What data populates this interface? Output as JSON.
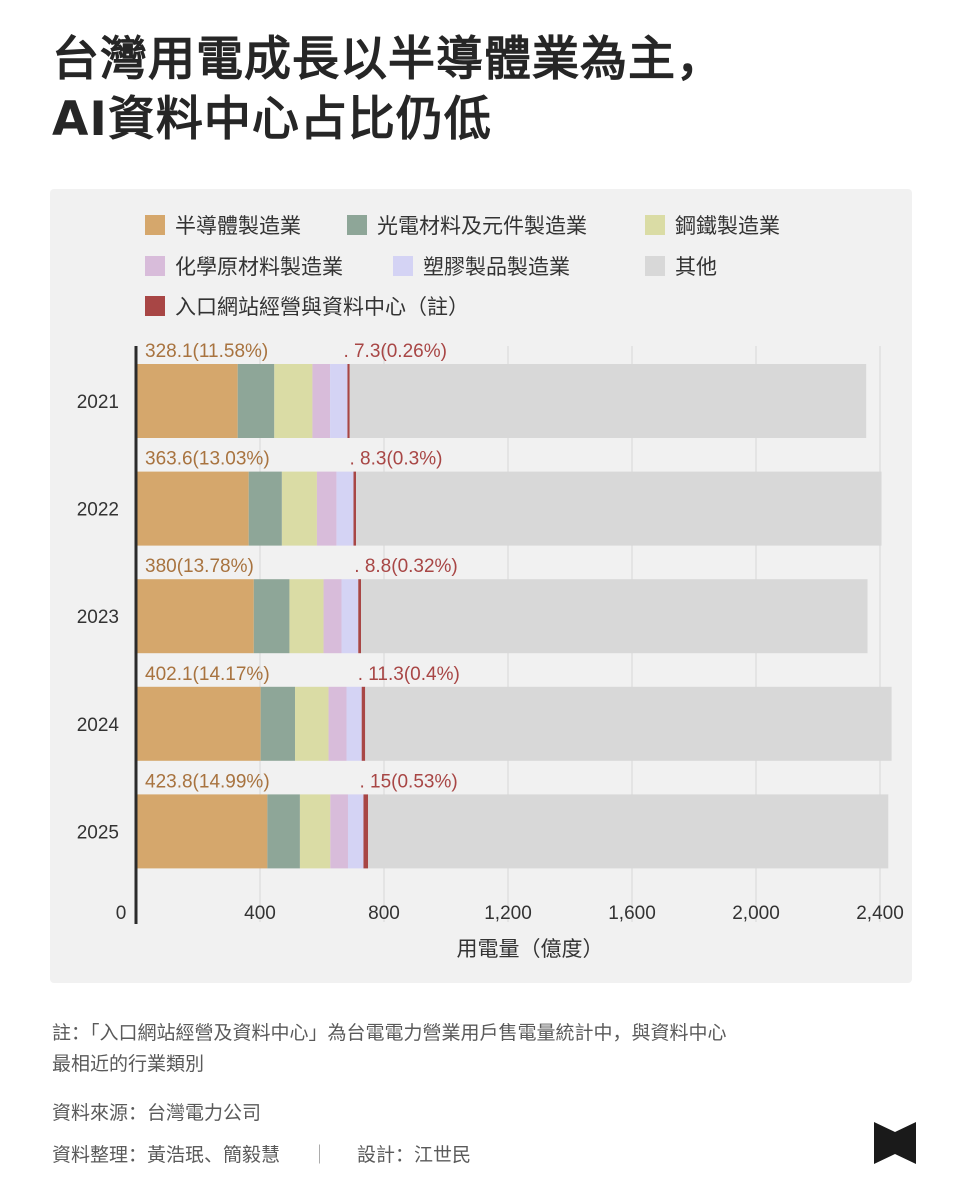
{
  "title_lines": [
    "台灣用電成長以半導體業為主，",
    "AI資料中心占比仍低"
  ],
  "legend": [
    {
      "label": "半導體製造業",
      "color": "#d5a76c"
    },
    {
      "label": "光電材料及元件製造業",
      "color": "#8ea698"
    },
    {
      "label": "鋼鐵製造業",
      "color": "#dadca5"
    },
    {
      "label": "化學原材料製造業",
      "color": "#d8bcda"
    },
    {
      "label": "塑膠製品製造業",
      "color": "#d4d3f4"
    },
    {
      "label": "其他",
      "color": "#d8d8d8"
    },
    {
      "label": "入口網站經營與資料中心（註）",
      "color": "#a84645"
    }
  ],
  "chart_data": {
    "type": "bar",
    "orientation": "horizontal",
    "stacked": true,
    "categories": [
      "2021",
      "2022",
      "2023",
      "2024",
      "2025"
    ],
    "series": [
      {
        "name": "半導體製造業",
        "color": "#d5a76c",
        "values": [
          328.1,
          363.6,
          380,
          402.1,
          423.8
        ]
      },
      {
        "name": "光電材料及元件製造業",
        "color": "#8ea698",
        "values": [
          118,
          107,
          115,
          111,
          105
        ]
      },
      {
        "name": "鋼鐵製造業",
        "color": "#dadca5",
        "values": [
          123,
          113,
          110,
          108,
          98
        ]
      },
      {
        "name": "化學原材料製造業",
        "color": "#d8bcda",
        "values": [
          57,
          63,
          58,
          58,
          57
        ]
      },
      {
        "name": "塑膠製品製造業",
        "color": "#d4d3f4",
        "values": [
          56,
          55,
          54,
          49,
          50
        ]
      },
      {
        "name": "入口網站經營與資料中心（註）",
        "color": "#a84645",
        "values": [
          7.3,
          8.3,
          8.8,
          11.3,
          15
        ]
      },
      {
        "name": "其他",
        "color": "#d8d8d8",
        "values": [
          1666,
          1695,
          1634,
          1698,
          1678
        ]
      }
    ],
    "bar_labels_semiconductor": [
      "328.1(11.58%)",
      "363.6(13.03%)",
      "380(13.78%)",
      "402.1(14.17%)",
      "423.8(14.99%)"
    ],
    "bar_labels_datacenter": [
      ". 7.3(0.26%)",
      ". 8.3(0.3%)",
      ". 8.8(0.32%)",
      ". 11.3(0.4%)",
      ". 15(0.53%)"
    ],
    "xticks": [
      0,
      400,
      800,
      1200,
      1600,
      2000,
      2400
    ],
    "xtick_labels": [
      "0",
      "400",
      "800",
      "1,200",
      "1,600",
      "2,000",
      "2,400"
    ],
    "xlim": [
      0,
      2400
    ],
    "xlabel": "用電量（億度）",
    "grid": true,
    "legend_position": "top"
  },
  "notes": {
    "note_lines": [
      "註：「入口網站經營及資料中心」為台電電力營業用戶售電量統計中，與資料中心",
      "最相近的行業類別"
    ],
    "source": "資料來源：台灣電力公司",
    "compiled": "資料整理：黃浩珉、簡毅慧",
    "separator": "｜",
    "design": "設計：江世民"
  }
}
